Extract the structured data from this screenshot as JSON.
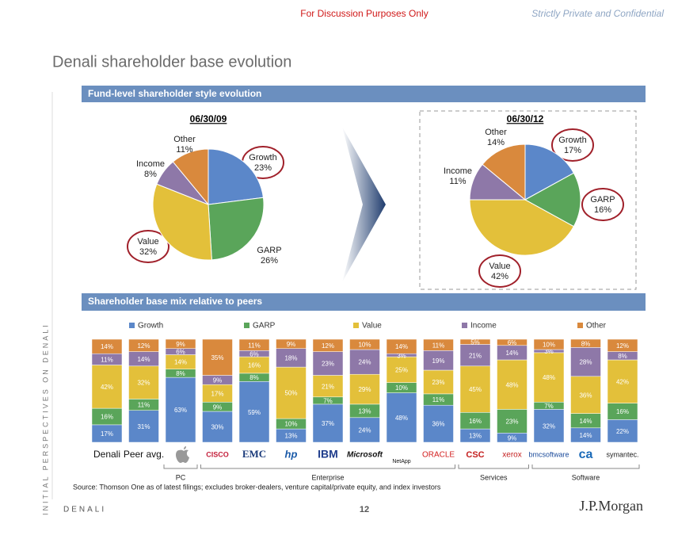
{
  "header": {
    "notice": "For Discussion Purposes Only",
    "confidential": "Strictly Private and Confidential"
  },
  "title": "Denali shareholder base evolution",
  "sections": [
    "Fund-level shareholder style evolution",
    "Shareholder base mix relative to peers"
  ],
  "side_text": "INITIAL PERSPECTIVES ON DENALI",
  "chart_data": [
    {
      "type": "pie",
      "title": "06/30/09",
      "categories": [
        "Growth",
        "GARP",
        "Value",
        "Income",
        "Other"
      ],
      "values": [
        23,
        26,
        32,
        8,
        11
      ],
      "value_labels": [
        "23%",
        "26%",
        "32%",
        "8%",
        "11%"
      ],
      "colors": [
        "#5b87c9",
        "#5aa55a",
        "#e3c03a",
        "#8e78a8",
        "#d9893d"
      ]
    },
    {
      "type": "pie",
      "title": "06/30/12",
      "categories": [
        "Growth",
        "GARP",
        "Value",
        "Income",
        "Other"
      ],
      "values": [
        17,
        16,
        42,
        11,
        14
      ],
      "value_labels": [
        "17%",
        "16%",
        "42%",
        "11%",
        "14%"
      ],
      "colors": [
        "#5b87c9",
        "#5aa55a",
        "#e3c03a",
        "#8e78a8",
        "#d9893d"
      ]
    },
    {
      "type": "bar",
      "stacked": true,
      "ylim": [
        0,
        100
      ],
      "categories": [
        "Denali",
        "Peer avg.",
        null,
        "CISCO",
        "EMC",
        "hp",
        "IBM",
        "Microsoft",
        "NetApp",
        "ORACLE",
        "CSC",
        "xerox",
        "bmcsoftware",
        "ca",
        "symantec."
      ],
      "series": [
        {
          "name": "Growth",
          "color": "#5b87c9",
          "values": [
            17,
            31,
            63,
            30,
            59,
            13,
            37,
            24,
            48,
            36,
            13,
            9,
            32,
            14,
            22
          ],
          "value_labels": [
            "17%",
            "31%",
            "63%",
            "30%",
            "59%",
            "13%",
            "37%",
            "24%",
            "48%",
            "36%",
            "13%",
            "9%",
            "32%",
            "14%",
            "22%"
          ]
        },
        {
          "name": "GARP",
          "color": "#5aa55a",
          "values": [
            16,
            11,
            8,
            9,
            8,
            10,
            7,
            13,
            10,
            11,
            16,
            23,
            7,
            14,
            16
          ],
          "value_labels": [
            "16%",
            "11%",
            "8%",
            "9%",
            "8%",
            "10%",
            "7%",
            "13%",
            "10%",
            "11%",
            "16%",
            "23%",
            "7%",
            "14%",
            "16%"
          ]
        },
        {
          "name": "Value",
          "color": "#e3c03a",
          "values": [
            42,
            32,
            14,
            17,
            16,
            50,
            21,
            29,
            25,
            23,
            45,
            48,
            48,
            36,
            42
          ],
          "value_labels": [
            "42%",
            "32%",
            "14%",
            "17%",
            "16%",
            "50%",
            "21%",
            "29%",
            "25%",
            "23%",
            "45%",
            "48%",
            "48%",
            "36%",
            "42%"
          ]
        },
        {
          "name": "Income",
          "color": "#8e78a8",
          "values": [
            11,
            14,
            6,
            9,
            6,
            18,
            23,
            24,
            3,
            19,
            21,
            14,
            3,
            28,
            8
          ],
          "value_labels": [
            "11%",
            "14%",
            "6%",
            "9%",
            "6%",
            "18%",
            "23%",
            "24%",
            "3%",
            "19%",
            "21%",
            "14%",
            "3%",
            "28%",
            "8%"
          ]
        },
        {
          "name": "Other",
          "color": "#d9893d",
          "values": [
            14,
            12,
            9,
            35,
            11,
            9,
            12,
            10,
            14,
            11,
            5,
            6,
            10,
            8,
            12
          ],
          "value_labels": [
            "14%",
            "12%",
            "9%",
            "35%",
            "11%",
            "9%",
            "12%",
            "10%",
            "14%",
            "11%",
            "5%",
            "6%",
            "10%",
            "8%",
            "12%"
          ]
        }
      ],
      "groups": [
        {
          "label": "PC",
          "first": 2,
          "last": 2
        },
        {
          "label": "Enterprise",
          "first": 3,
          "last": 9
        },
        {
          "label": "Services",
          "first": 10,
          "last": 11
        },
        {
          "label": "Software",
          "first": 12,
          "last": 14
        }
      ]
    }
  ],
  "source": "Source: Thomson One as of latest filings; excludes broker-dealers, venture capital/private equity, and index investors",
  "footer": {
    "company": "DENALI",
    "page": "12",
    "bank": "J.P.Morgan"
  }
}
